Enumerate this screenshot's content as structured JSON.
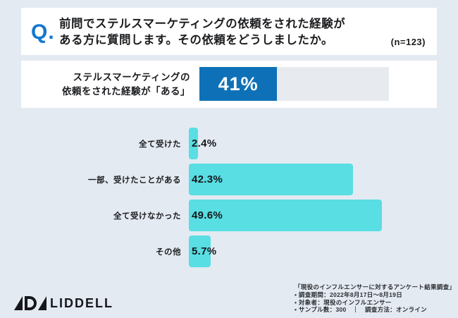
{
  "colors": {
    "background": "#e4eaf2",
    "accent_blue": "#1477cf",
    "summary_bar_blue": "#0e71b8",
    "summary_track_gray": "#e7ebf0",
    "teal_bar": "#58dee3",
    "text_dark": "#1b1c1f"
  },
  "question": {
    "q_mark": "Q.",
    "line1": "前問でステルスマーケティングの依頼をされた経験が",
    "line2": "ある方に質問します。その依頼をどうしましたか。",
    "sample": "(n=123)"
  },
  "summary": {
    "label_line1": "ステルスマーケティングの",
    "label_line2": "依頼をされた経験が「ある」",
    "value_percent": 41,
    "value_label": "41%"
  },
  "chart_data": {
    "type": "bar",
    "orientation": "horizontal",
    "title": "その依頼をどうしましたか",
    "categories": [
      "全て受けた",
      "一部、受けたことがある",
      "全て受けなかった",
      "その他"
    ],
    "values": [
      2.4,
      42.3,
      49.6,
      5.7
    ],
    "value_labels": [
      "2.4%",
      "42.3%",
      "49.6%",
      "5.7%"
    ],
    "unit": "%",
    "xlim": [
      0,
      100
    ],
    "grid": false,
    "legend": false
  },
  "footer": {
    "logo_word": "LIDDELL",
    "source_title": "「現役のインフルエンサーに対するアンケート結果調査」",
    "source_lines": [
      "• 調査期間：2022年8月17日〜8月19日",
      "• 対象者：現役のインフルエンサー",
      "• サンプル数：300　｜　調査方法：オンライン"
    ]
  }
}
